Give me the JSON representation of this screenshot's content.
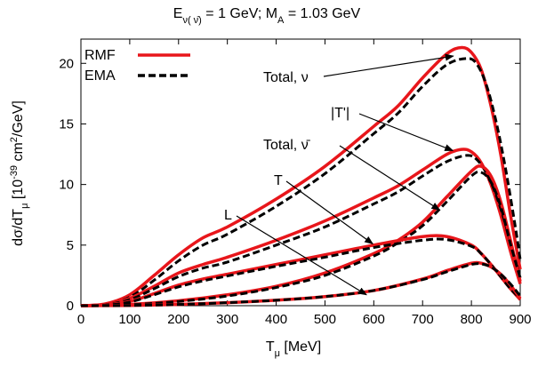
{
  "chart_data": {
    "type": "line",
    "title": "E_ν( ν̄) = 1 GeV; M_A = 1.03 GeV",
    "title_parts": {
      "E": "E",
      "E_sub": "ν( ν̄)",
      "mid": " = 1 GeV; M",
      "M_sub": "A",
      "tail": " = 1.03 GeV"
    },
    "xlabel": "T_μ [MeV]",
    "xlabel_parts": {
      "T": "T",
      "sub": "μ",
      "rest": " [MeV]"
    },
    "ylabel": "dσ/dT_μ [10^-39 cm^2/GeV]",
    "ylabel_parts": {
      "a": "dσ/dT",
      "sub": "μ",
      "b": " [10",
      "sup1": "-39",
      "c": " cm",
      "sup2": "2",
      "d": "/GeV]"
    },
    "xlim": [
      0,
      900
    ],
    "ylim": [
      0,
      22
    ],
    "x_ticks": [
      0,
      100,
      200,
      300,
      400,
      500,
      600,
      700,
      800,
      900
    ],
    "y_ticks": [
      0,
      5,
      10,
      15,
      20
    ],
    "grid": false,
    "legend_position": "top-left",
    "colors": {
      "RMF": "#e8161b",
      "EMA": "#000000"
    },
    "series": [
      {
        "name": "RMF",
        "style": "solid",
        "color": "#e8161b"
      },
      {
        "name": "EMA",
        "style": "dashed",
        "color": "#000000"
      }
    ],
    "curves": [
      {
        "id": "total-nu",
        "annotation": "Total, ν",
        "RMF": {
          "x": [
            0,
            50,
            100,
            150,
            200,
            250,
            300,
            400,
            500,
            600,
            650,
            700,
            750,
            780,
            800,
            820,
            840,
            860,
            880,
            900
          ],
          "y": [
            0,
            0.15,
            0.9,
            2.5,
            4.2,
            5.6,
            6.5,
            8.8,
            11.5,
            14.8,
            16.5,
            18.8,
            20.8,
            21.3,
            20.9,
            19.5,
            16.5,
            12.5,
            7.5,
            3.0
          ]
        },
        "EMA": {
          "x": [
            0,
            50,
            100,
            150,
            200,
            250,
            300,
            400,
            500,
            600,
            650,
            700,
            750,
            790,
            810,
            830,
            850,
            870,
            890,
            900
          ],
          "y": [
            0,
            0.1,
            0.7,
            2.1,
            3.7,
            5.0,
            5.9,
            8.2,
            10.9,
            14.2,
            15.9,
            18.1,
            19.9,
            20.4,
            20.0,
            18.3,
            15.3,
            11.3,
            6.5,
            3.8
          ]
        }
      },
      {
        "id": "T-prime",
        "annotation": "|T'|",
        "RMF": {
          "x": [
            0,
            50,
            100,
            150,
            200,
            250,
            300,
            400,
            500,
            600,
            650,
            700,
            750,
            780,
            800,
            820,
            840,
            860,
            880,
            900
          ],
          "y": [
            0,
            0.1,
            0.6,
            1.6,
            2.7,
            3.4,
            4.0,
            5.4,
            7.0,
            8.9,
            9.9,
            11.2,
            12.5,
            12.9,
            12.7,
            11.8,
            10.0,
            7.5,
            4.5,
            1.8
          ]
        },
        "EMA": {
          "x": [
            0,
            50,
            100,
            150,
            200,
            250,
            300,
            400,
            500,
            600,
            650,
            700,
            750,
            790,
            810,
            830,
            850,
            870,
            890,
            900
          ],
          "y": [
            0,
            0.08,
            0.5,
            1.4,
            2.4,
            3.1,
            3.6,
            5.0,
            6.5,
            8.4,
            9.4,
            10.7,
            11.9,
            12.4,
            12.1,
            11.0,
            9.2,
            6.7,
            3.8,
            2.3
          ]
        }
      },
      {
        "id": "total-nubar",
        "annotation": "Total,  ν̄",
        "RMF": {
          "x": [
            0,
            100,
            200,
            300,
            400,
            500,
            600,
            650,
            700,
            750,
            800,
            820,
            840,
            860,
            880,
            900
          ],
          "y": [
            0,
            0.1,
            0.4,
            0.9,
            1.6,
            2.7,
            4.3,
            5.4,
            6.9,
            9.0,
            11.1,
            11.5,
            10.7,
            8.6,
            5.4,
            2.0
          ]
        },
        "EMA": {
          "x": [
            0,
            100,
            200,
            300,
            400,
            500,
            600,
            650,
            700,
            750,
            800,
            820,
            840,
            860,
            880,
            900
          ],
          "y": [
            0,
            0.08,
            0.35,
            0.8,
            1.5,
            2.5,
            4.1,
            5.2,
            6.6,
            8.6,
            10.7,
            11.0,
            10.2,
            8.2,
            5.1,
            2.3
          ]
        }
      },
      {
        "id": "T",
        "annotation": "T",
        "RMF": {
          "x": [
            0,
            50,
            100,
            150,
            200,
            250,
            300,
            400,
            500,
            600,
            700,
            750,
            800,
            820,
            840,
            860,
            880,
            900
          ],
          "y": [
            0,
            0.05,
            0.35,
            1.0,
            1.7,
            2.2,
            2.6,
            3.4,
            4.2,
            5.0,
            5.7,
            5.7,
            5.0,
            4.3,
            3.4,
            2.4,
            1.4,
            0.5
          ]
        },
        "EMA": {
          "x": [
            0,
            50,
            100,
            150,
            200,
            250,
            300,
            400,
            500,
            600,
            700,
            750,
            800,
            820,
            840,
            860,
            880,
            900
          ],
          "y": [
            0,
            0.04,
            0.3,
            0.9,
            1.55,
            2.05,
            2.45,
            3.25,
            4.0,
            4.8,
            5.4,
            5.45,
            4.9,
            4.3,
            3.4,
            2.4,
            1.4,
            0.6
          ]
        }
      },
      {
        "id": "L",
        "annotation": "L",
        "RMF": {
          "x": [
            0,
            100,
            200,
            300,
            400,
            500,
            600,
            700,
            750,
            800,
            820,
            840,
            860,
            880,
            900
          ],
          "y": [
            0,
            0.02,
            0.1,
            0.25,
            0.45,
            0.75,
            1.25,
            2.2,
            2.9,
            3.5,
            3.5,
            3.2,
            2.6,
            1.7,
            0.6
          ]
        },
        "EMA": {
          "x": [
            0,
            100,
            200,
            300,
            400,
            500,
            600,
            700,
            750,
            800,
            820,
            840,
            860,
            880,
            900
          ],
          "y": [
            0,
            0.02,
            0.1,
            0.25,
            0.45,
            0.75,
            1.25,
            2.15,
            2.8,
            3.4,
            3.45,
            3.2,
            2.6,
            1.8,
            0.8
          ]
        }
      }
    ],
    "annotations": [
      {
        "text": "Total, ν",
        "tip": [
          763,
          20.6
        ]
      },
      {
        "text": "|T'|",
        "tip": [
          762,
          12.8
        ]
      },
      {
        "text": "Total,  ν̄",
        "tip": [
          735,
          7.9
        ]
      },
      {
        "text": "T",
        "tip": [
          598,
          5.1
        ]
      },
      {
        "text": "L",
        "tip": [
          585,
          0.9
        ]
      }
    ]
  }
}
